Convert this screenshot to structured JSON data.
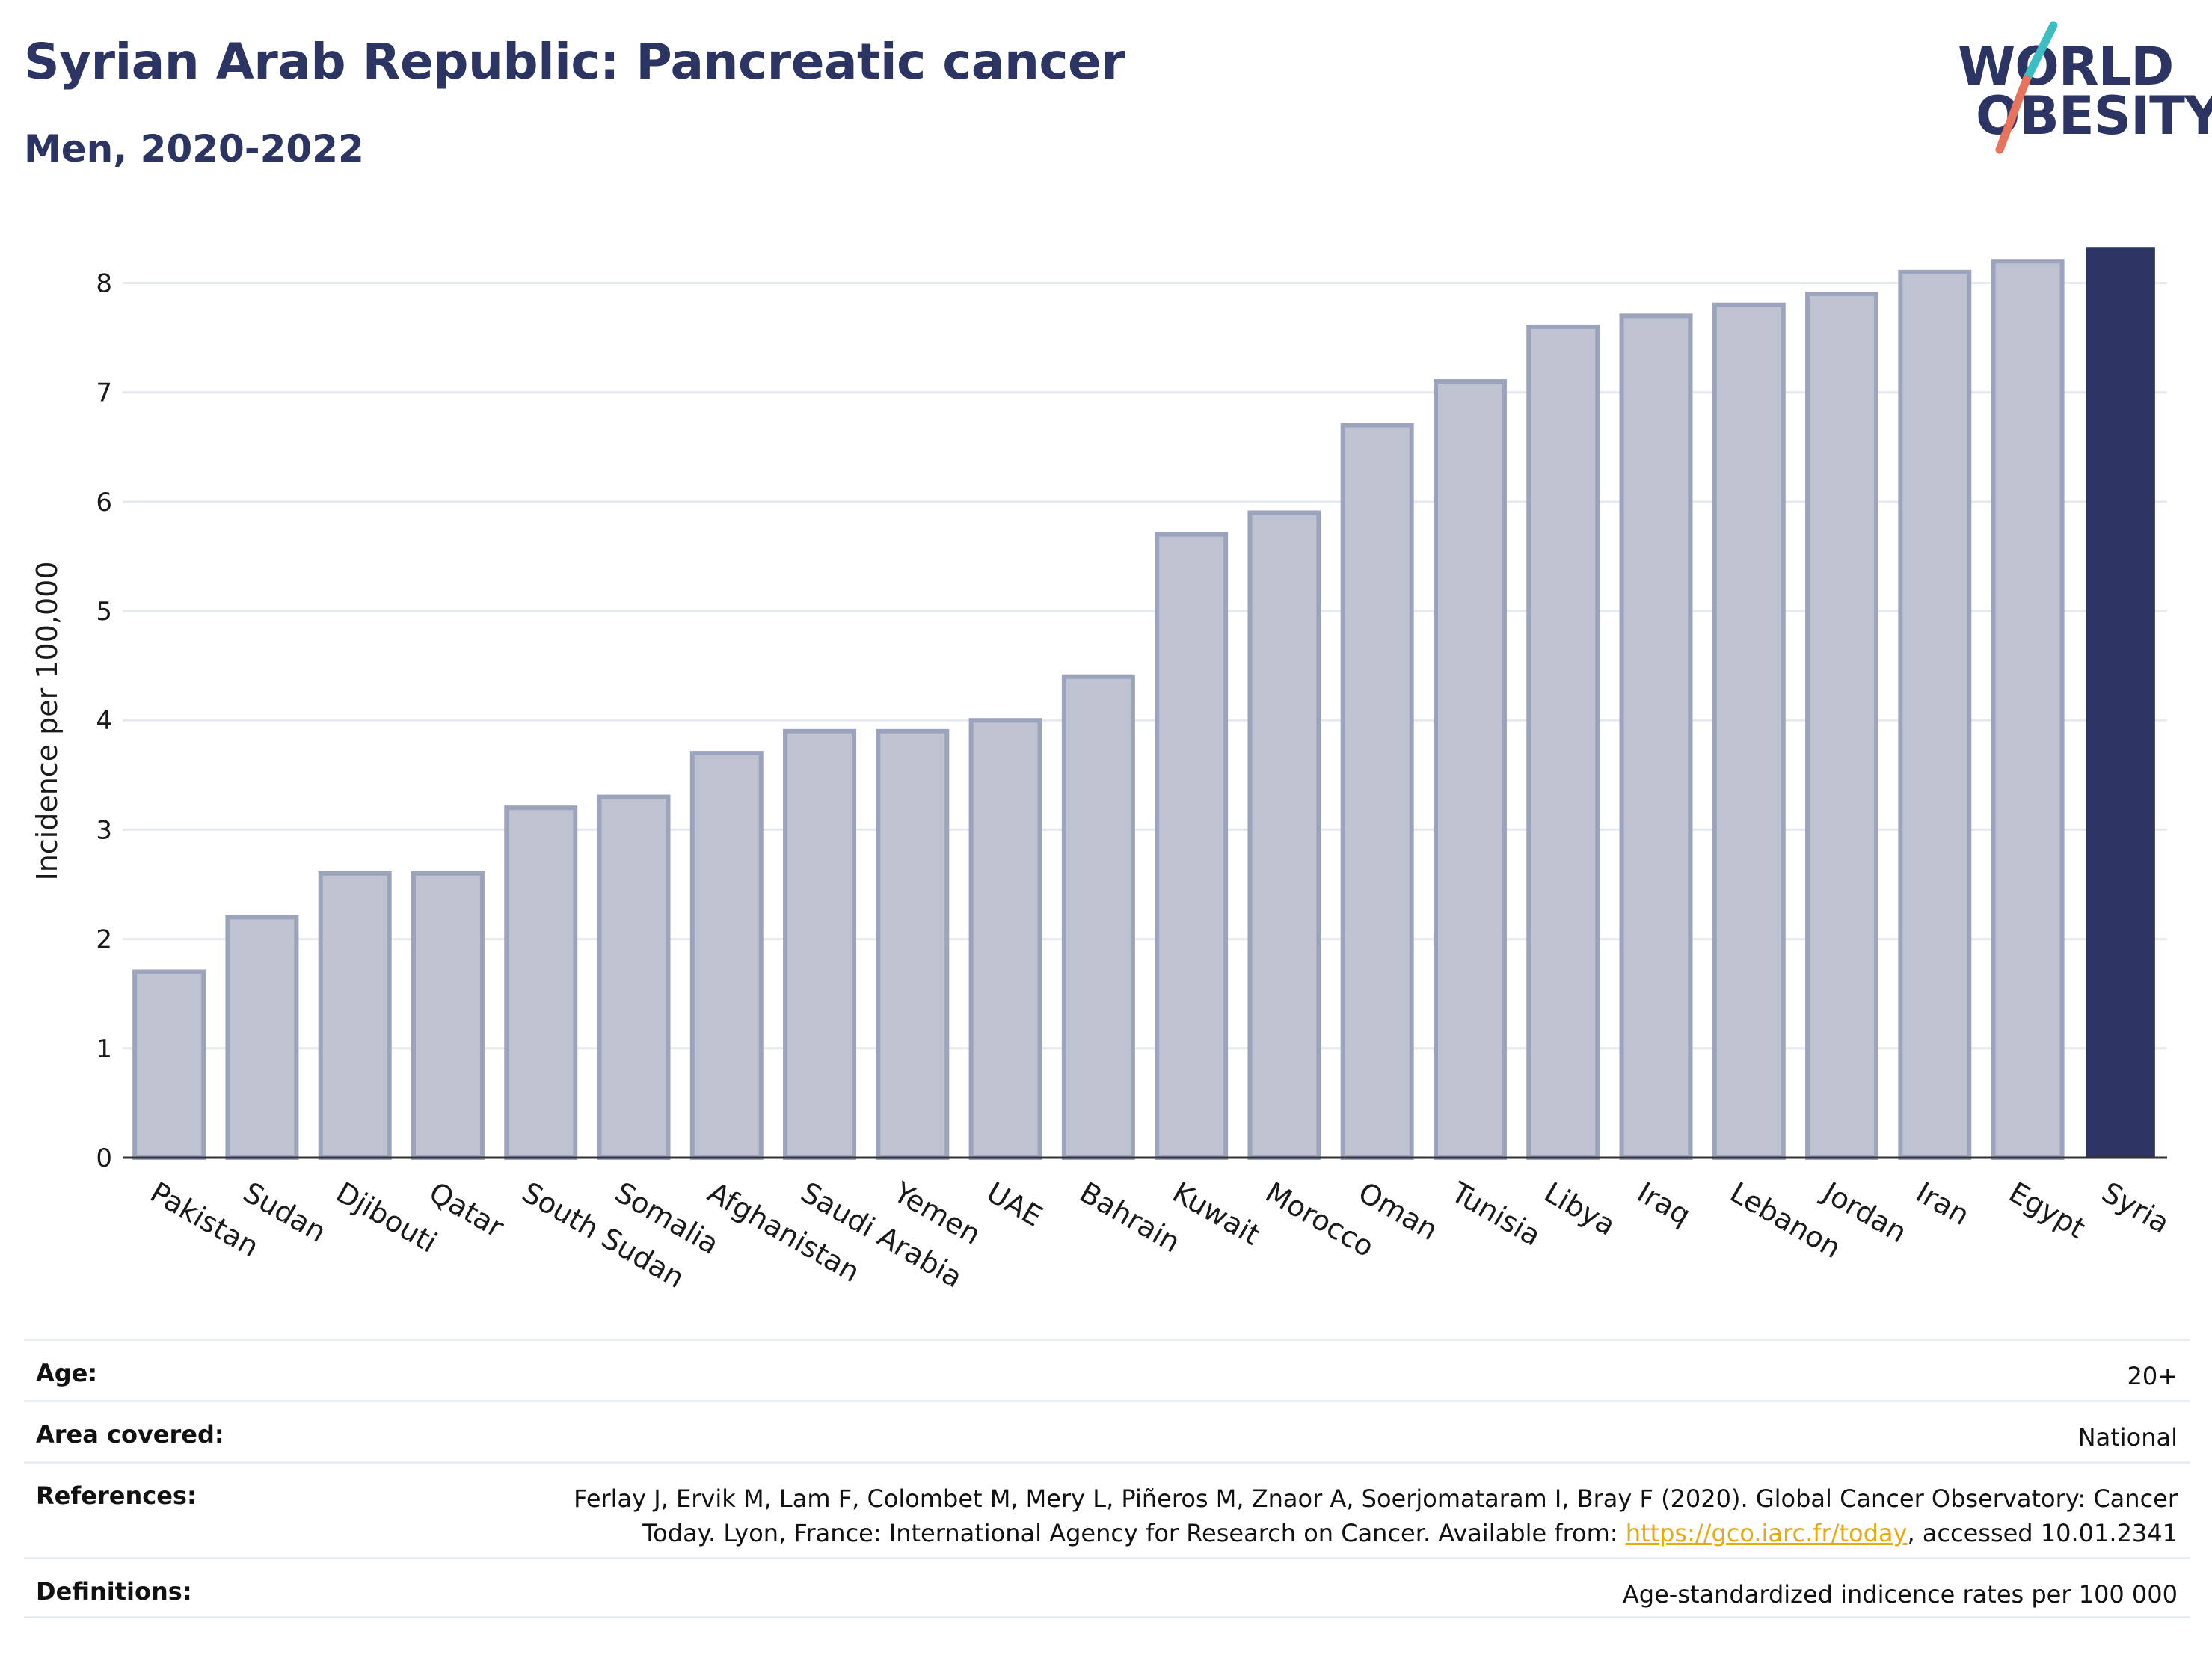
{
  "header": {
    "title": "Syrian Arab Republic: Pancreatic cancer",
    "subtitle": "Men, 2020-2022",
    "logo_line1": "WORLD",
    "logo_line2": "OBESITY"
  },
  "colors": {
    "highlight": "#2b3462",
    "bar_fill": "#bfc3d1",
    "bar_stroke": "#9ca3bd",
    "gridline": "#e6e9ee",
    "logo_teal": "#3bbdc1",
    "logo_coral": "#e8735c"
  },
  "chart_data": {
    "type": "bar",
    "ylabel": "Incidence per 100,000",
    "ylim": [
      0,
      8.4
    ],
    "yticks": [
      0,
      1,
      2,
      3,
      4,
      5,
      6,
      7,
      8
    ],
    "grid": true,
    "highlight_category": "Syria",
    "categories": [
      "Pakistan",
      "Sudan",
      "Djibouti",
      "Qatar",
      "South Sudan",
      "Somalia",
      "Afghanistan",
      "Saudi Arabia",
      "Yemen",
      "UAE",
      "Bahrain",
      "Kuwait",
      "Morocco",
      "Oman",
      "Tunisia",
      "Libya",
      "Iraq",
      "Lebanon",
      "Jordan",
      "Iran",
      "Egypt",
      "Syria"
    ],
    "values": [
      1.7,
      2.2,
      2.6,
      2.6,
      3.2,
      3.3,
      3.7,
      3.9,
      3.9,
      4.0,
      4.4,
      5.7,
      5.9,
      6.7,
      7.1,
      7.6,
      7.7,
      7.8,
      7.9,
      8.1,
      8.2,
      8.33
    ]
  },
  "info": {
    "age_label": "Age:",
    "age_value": "20+",
    "area_label": "Area covered:",
    "area_value": "National",
    "references_label": "References:",
    "references_line1": "Ferlay J, Ervik M, Lam F, Colombet M, Mery L, Piñeros M, Znaor A, Soerjomataram I, Bray F (2020). Global Cancer Observatory: Cancer",
    "references_line2_pre": "Today. Lyon, France: International Agency for Research on Cancer. Available from: ",
    "references_link": "https://gco.iarc.fr/today",
    "references_line2_post": ", accessed 10.01.2341",
    "definitions_label": "Definitions:",
    "definitions_value": "Age-standardized indicence rates per 100 000"
  }
}
